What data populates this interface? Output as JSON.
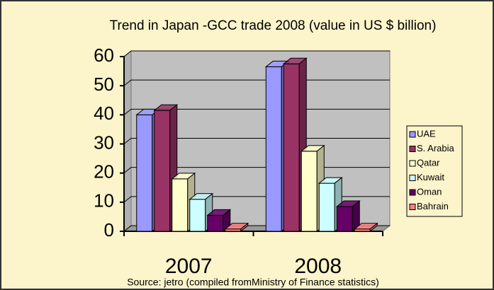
{
  "chart_data": {
    "type": "bar3d",
    "title": "Trend in Japan -GCC trade 2008 (value in US $ billion)",
    "source": "Source: jetro (compiled fromMinistry of Finance statistics)",
    "categories": [
      "2007",
      "2008"
    ],
    "series": [
      {
        "name": "UAE",
        "color": "#9999ff",
        "values": [
          40,
          56.5
        ]
      },
      {
        "name": "S. Arabia",
        "color": "#993366",
        "values": [
          41.5,
          57.5
        ]
      },
      {
        "name": "Qatar",
        "color": "#ffffcc",
        "values": [
          18,
          27.5
        ]
      },
      {
        "name": "Kuwait",
        "color": "#ccffff",
        "values": [
          11,
          16.5
        ]
      },
      {
        "name": "Oman",
        "color": "#660066",
        "values": [
          5.5,
          8.5
        ]
      },
      {
        "name": "Bahrain",
        "color": "#ff8080",
        "values": [
          0.8,
          0.8
        ]
      }
    ],
    "ylim": [
      0,
      60
    ],
    "yticks": [
      0,
      10,
      20,
      30,
      40,
      50,
      60
    ],
    "grid": true,
    "legend": "right"
  }
}
